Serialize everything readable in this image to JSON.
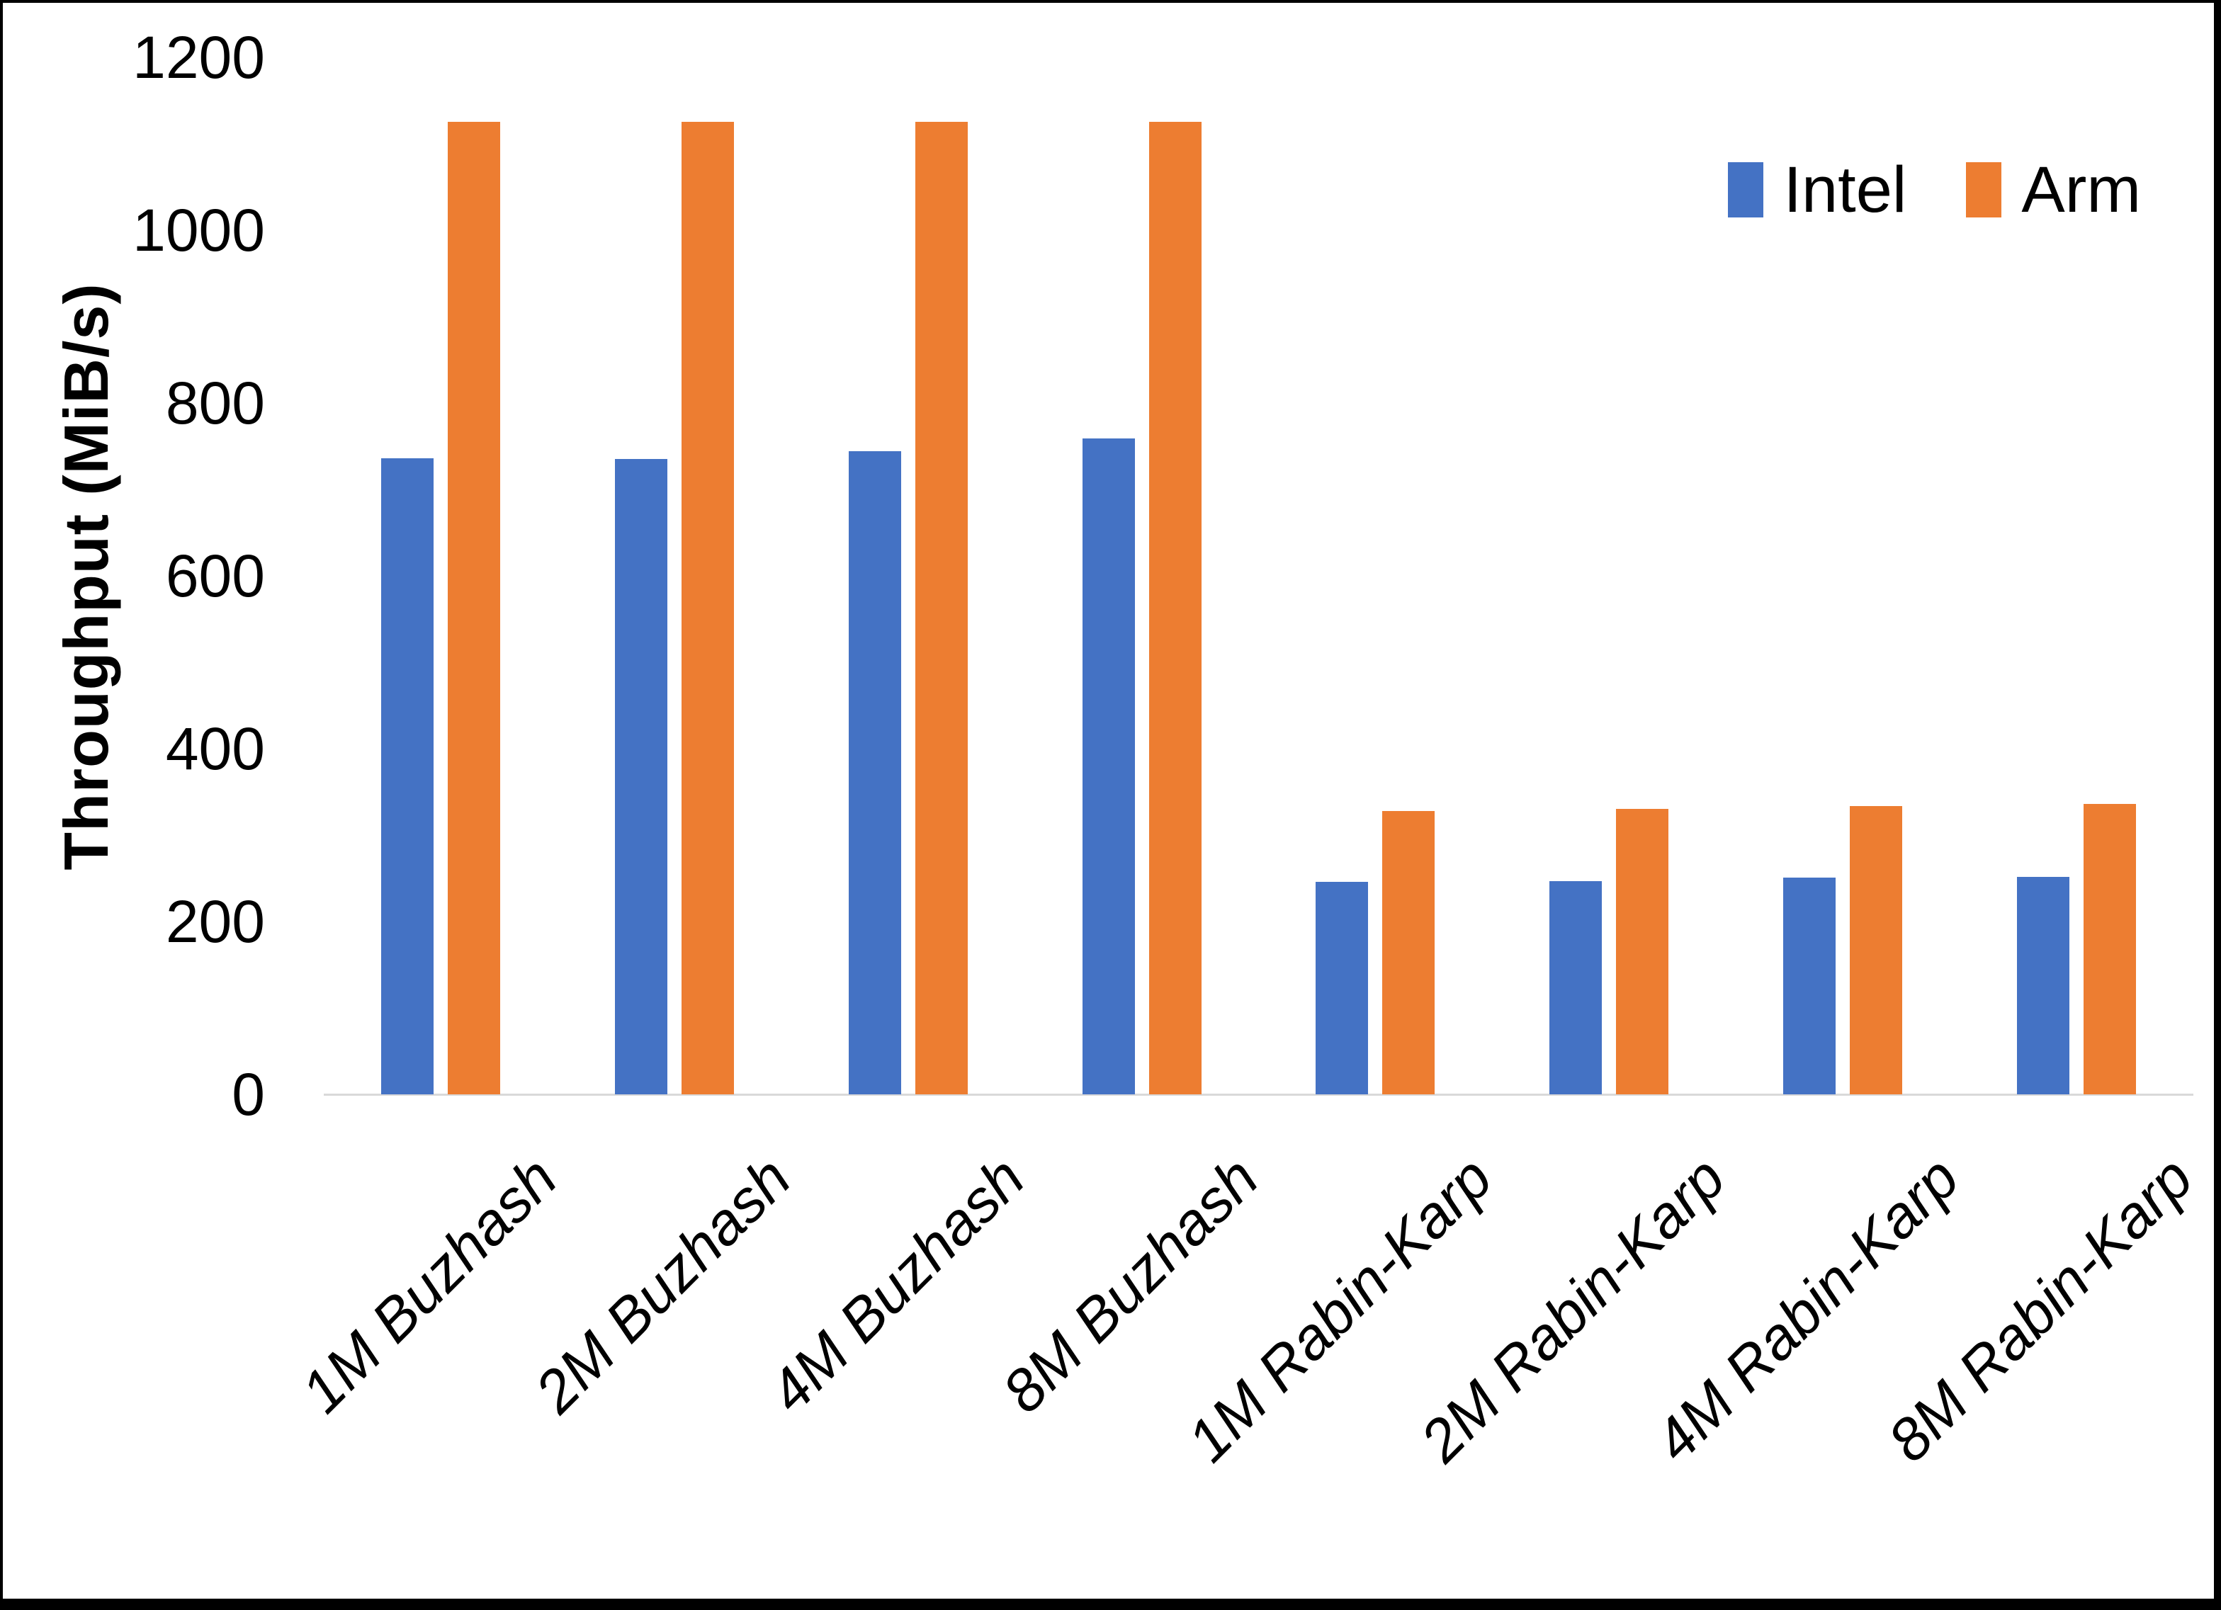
{
  "chart_data": {
    "type": "bar",
    "title": "",
    "ylabel": "Throughput (MiB/s)",
    "xlabel": "",
    "ylim": [
      0,
      1200
    ],
    "yticks": [
      0,
      200,
      400,
      600,
      800,
      1000,
      1200
    ],
    "grid": false,
    "legend_position": "top-right",
    "axis_line_color": "#D9D9D9",
    "text_color": "#000000",
    "categories": [
      "1M Buzhash",
      "2M Buzhash",
      "4M Buzhash",
      "8M Buzhash",
      "1M Rabin-Karp",
      "2M Rabin-Karp",
      "4M Rabin-Karp",
      "8M Rabin-Karp"
    ],
    "series": [
      {
        "name": "Intel",
        "color": "#4472C4",
        "values": [
          736,
          735,
          744,
          759,
          246,
          247,
          251,
          252
        ]
      },
      {
        "name": "Arm",
        "color": "#ED7D31",
        "values": [
          1125,
          1125,
          1125,
          1125,
          328,
          330,
          334,
          336
        ]
      }
    ]
  }
}
